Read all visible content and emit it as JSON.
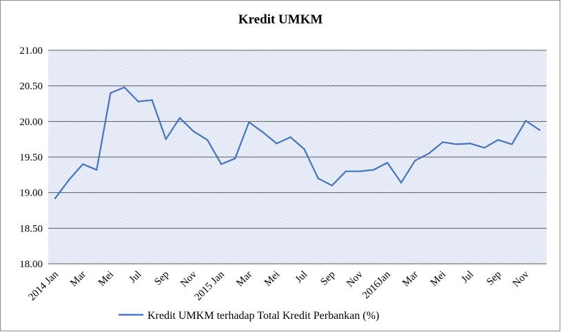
{
  "chart_data": {
    "type": "line",
    "title": "Kredit UMKM",
    "ylim": [
      18.0,
      21.0
    ],
    "y_ticks": [
      "18.00",
      "18.50",
      "19.00",
      "19.50",
      "20.00",
      "20.50",
      "21.00"
    ],
    "y_tick_values": [
      18.0,
      18.5,
      19.0,
      19.5,
      20.0,
      20.5,
      21.0
    ],
    "grid": true,
    "legend_position": "bottom",
    "x_tick_labels": [
      {
        "index": 0,
        "label": "2014 Jan"
      },
      {
        "index": 2,
        "label": "Mar"
      },
      {
        "index": 4,
        "label": "Mei"
      },
      {
        "index": 6,
        "label": "Jul"
      },
      {
        "index": 8,
        "label": "Sep"
      },
      {
        "index": 10,
        "label": "Nov"
      },
      {
        "index": 12,
        "label": "2015 Jan"
      },
      {
        "index": 14,
        "label": "Mar"
      },
      {
        "index": 16,
        "label": "Mei"
      },
      {
        "index": 18,
        "label": "Jul"
      },
      {
        "index": 20,
        "label": "Sep"
      },
      {
        "index": 22,
        "label": "Nov"
      },
      {
        "index": 24,
        "label": "2016Jan"
      },
      {
        "index": 26,
        "label": "Mar"
      },
      {
        "index": 28,
        "label": "Mei"
      },
      {
        "index": 30,
        "label": "Jul"
      },
      {
        "index": 32,
        "label": "Sep"
      },
      {
        "index": 34,
        "label": "Nov"
      }
    ],
    "series": [
      {
        "name": "Kredit UMKM terhadap Total Kredit Perbankan (%)",
        "color": "#4472c4",
        "values": [
          18.92,
          19.18,
          19.4,
          19.32,
          20.4,
          20.48,
          20.28,
          20.3,
          19.75,
          20.05,
          19.86,
          19.74,
          19.4,
          19.48,
          19.99,
          19.85,
          19.69,
          19.78,
          19.61,
          19.2,
          19.1,
          19.3,
          19.3,
          19.32,
          19.42,
          19.14,
          19.45,
          19.55,
          19.71,
          19.68,
          19.69,
          19.63,
          19.74,
          19.68,
          20.01,
          19.88
        ]
      }
    ]
  }
}
